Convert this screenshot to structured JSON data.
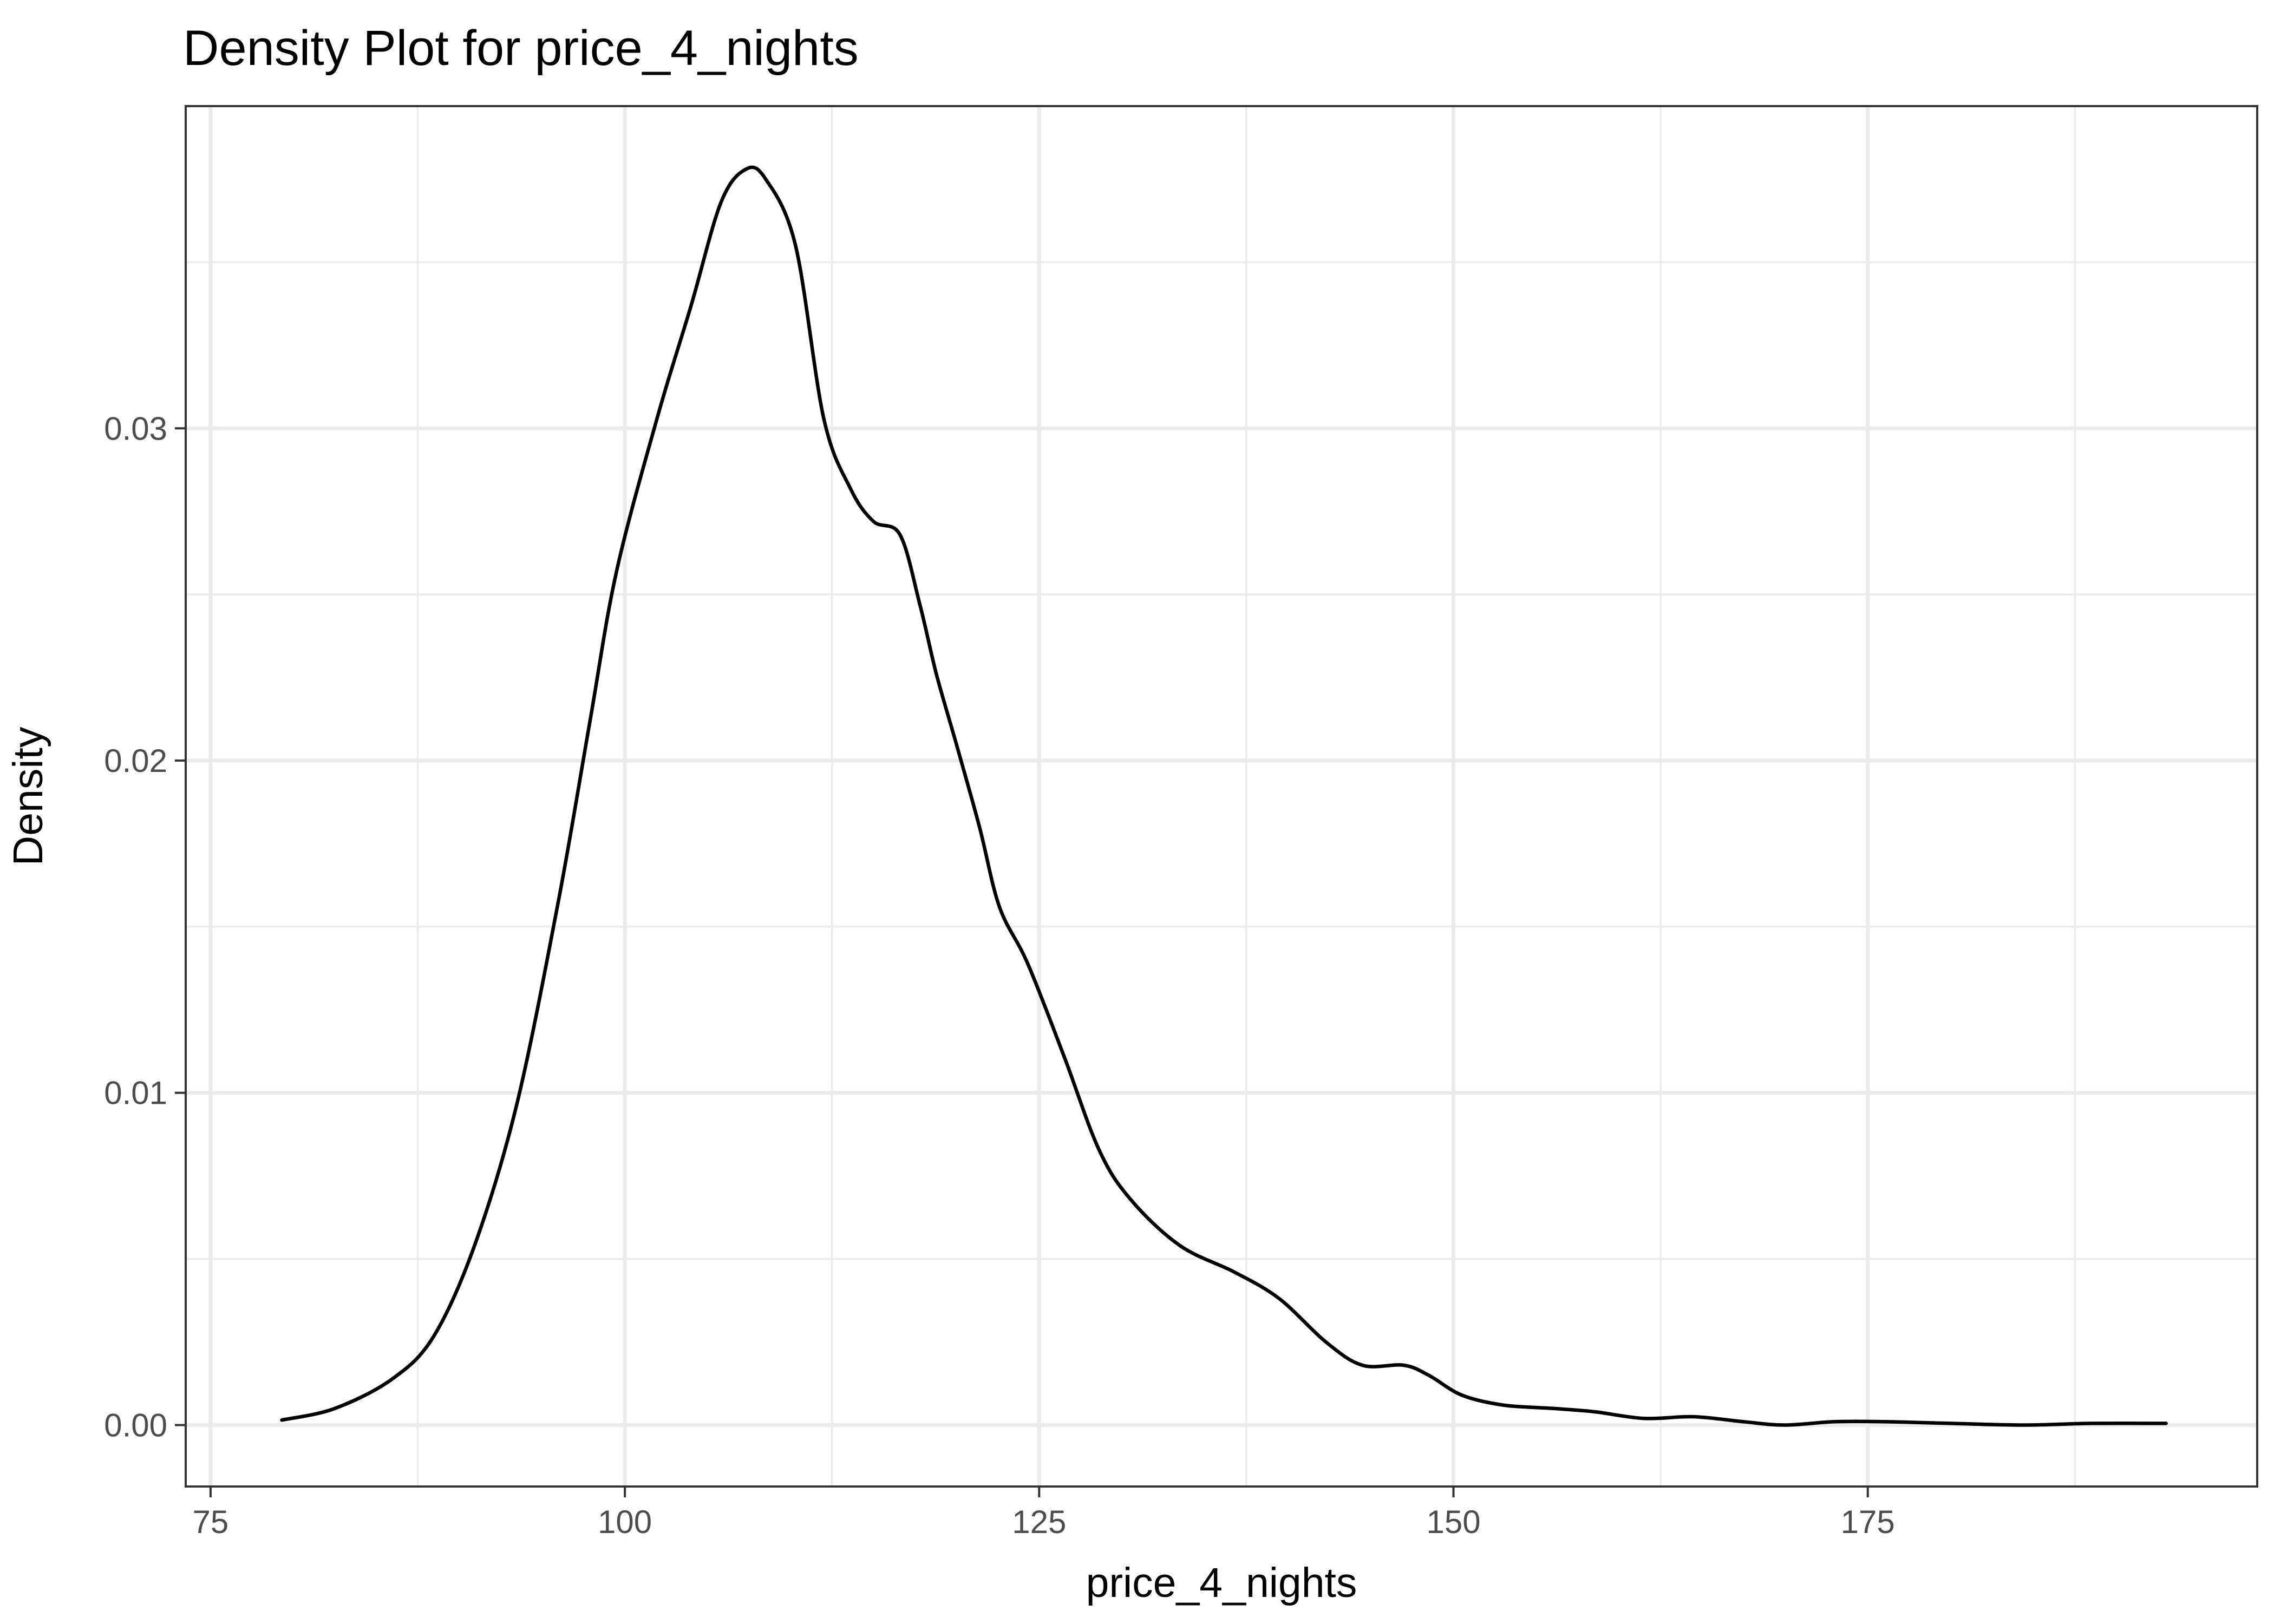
{
  "chart_data": {
    "type": "line",
    "title": "Density Plot for price_4_nights",
    "xlabel": "price_4_nights",
    "ylabel": "Density",
    "xlim": [
      73.5,
      198.5
    ],
    "ylim": [
      -0.00185,
      0.0397
    ],
    "x_ticks": [
      75,
      100,
      125,
      150,
      175
    ],
    "x_tick_labels": [
      "75",
      "100",
      "125",
      "150",
      "175"
    ],
    "y_ticks": [
      0.0,
      0.01,
      0.02,
      0.03
    ],
    "y_tick_labels": [
      "0.00",
      "0.01",
      "0.02",
      "0.03"
    ],
    "grid": true,
    "legend": "none",
    "line_color": "#000000",
    "series": [
      {
        "x": [
          79.3,
          82.5,
          86.0,
          88.5,
          91.0,
          93.5,
          96.0,
          97.9,
          99.5,
          102.0,
          104.0,
          105.8,
          107.3,
          108.5,
          110.3,
          112.0,
          113.6,
          115.0,
          116.6,
          117.8,
          118.8,
          120.0,
          121.4,
          122.6,
          124.3,
          126.5,
          128.6,
          130.5,
          133.5,
          136.8,
          139.5,
          142.3,
          144.5,
          147.0,
          148.5,
          150.5,
          153.0,
          156.0,
          158.5,
          161.5,
          164.5,
          167.5,
          170.0,
          173.0,
          176.0,
          180.0,
          184.5,
          188.5,
          193.0
        ],
        "y": [
          0.00015,
          0.0005,
          0.0014,
          0.0027,
          0.0055,
          0.0097,
          0.0158,
          0.0212,
          0.0257,
          0.0304,
          0.0337,
          0.0368,
          0.0378,
          0.0375,
          0.0355,
          0.0303,
          0.0282,
          0.0272,
          0.0268,
          0.0247,
          0.0226,
          0.0205,
          0.018,
          0.0156,
          0.0139,
          0.0111,
          0.0083,
          0.0068,
          0.0054,
          0.0046,
          0.0038,
          0.0025,
          0.0018,
          0.0018,
          0.0015,
          0.0009,
          0.0006,
          0.0005,
          0.0004,
          0.0002,
          0.00025,
          0.0001,
          0.0,
          0.0001,
          0.0001,
          5e-05,
          0.0,
          5e-05,
          5e-05
        ]
      }
    ]
  }
}
